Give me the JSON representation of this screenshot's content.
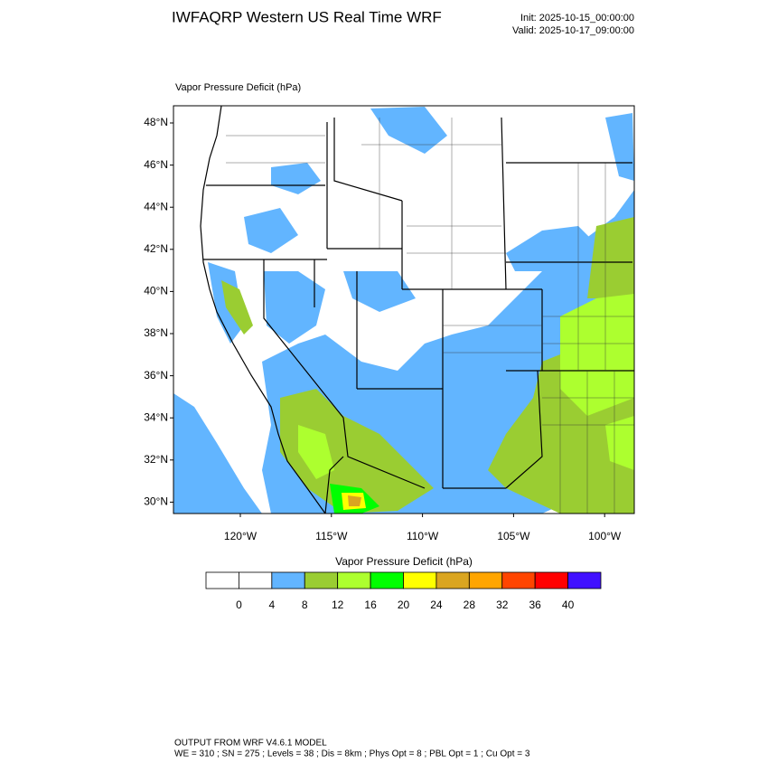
{
  "header": {
    "title": "IWFAQRP Western US Real Time WRF",
    "init": "Init: 2025-10-15_00:00:00",
    "valid": "Valid: 2025-10-17_09:00:00"
  },
  "map": {
    "title": "Vapor Pressure Deficit   (hPa)",
    "lat_labels": [
      "48°N",
      "46°N",
      "44°N",
      "42°N",
      "40°N",
      "38°N",
      "36°N",
      "34°N",
      "32°N",
      "30°N"
    ],
    "lon_labels": [
      "120°W",
      "115°W",
      "110°W",
      "105°W",
      "100°W"
    ]
  },
  "colorbar": {
    "title": "Vapor Pressure Deficit  (hPa)",
    "colors": [
      "#ffffff",
      "#ffffff",
      "#62b5ff",
      "#9acd32",
      "#adff2f",
      "#00ff00",
      "#ffff00",
      "#daa520",
      "#ffa500",
      "#ff4500",
      "#ff0000",
      "#4010ff"
    ],
    "labels": [
      "0",
      "4",
      "8",
      "12",
      "16",
      "20",
      "24",
      "28",
      "32",
      "36",
      "40"
    ]
  },
  "footer": {
    "line1": "OUTPUT FROM WRF V4.6.1 MODEL",
    "line2": "WE = 310 ; SN = 275 ; Levels = 38 ; Dis = 8km ; Phys Opt = 8 ; PBL Opt = 1 ; Cu Opt = 3"
  }
}
